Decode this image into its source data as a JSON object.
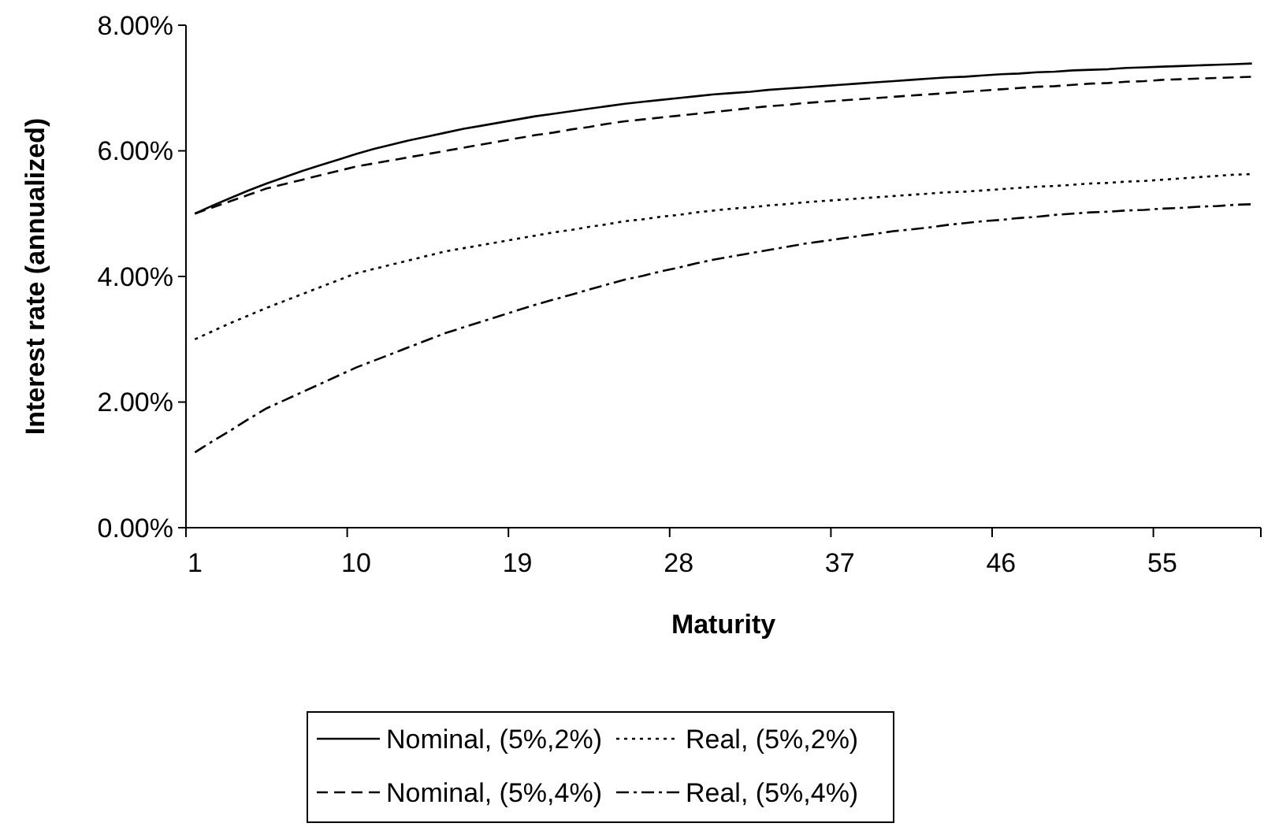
{
  "chart_data": {
    "type": "line",
    "xlabel": "Maturity",
    "ylabel": "Interest rate (annualized)",
    "categories": [
      "1",
      null,
      null,
      null,
      null,
      null,
      null,
      null,
      null,
      "10",
      null,
      null,
      null,
      null,
      null,
      null,
      null,
      null,
      "19",
      null,
      null,
      null,
      null,
      null,
      null,
      null,
      null,
      "28",
      null,
      null,
      null,
      null,
      null,
      null,
      null,
      null,
      "37",
      null,
      null,
      null,
      null,
      null,
      null,
      null,
      null,
      "46",
      null,
      null,
      null,
      null,
      null,
      null,
      null,
      null,
      "55",
      null,
      null,
      null,
      null,
      null
    ],
    "ylim": [
      0,
      8
    ],
    "yticks": [
      {
        "value": 0,
        "label": "0.00%"
      },
      {
        "value": 2,
        "label": "2.00%"
      },
      {
        "value": 4,
        "label": "4.00%"
      },
      {
        "value": 6,
        "label": "6.00%"
      },
      {
        "value": 8,
        "label": "8.00%"
      }
    ],
    "grid": false,
    "legend": "bottom",
    "marker": "none",
    "series": [
      {
        "name": "Nominal, (5%,2%)",
        "color": "#000000",
        "line_style": "solid",
        "values": [
          5.0,
          5.13,
          5.25,
          5.37,
          5.48,
          5.58,
          5.68,
          5.77,
          5.86,
          5.95,
          6.03,
          6.1,
          6.17,
          6.23,
          6.29,
          6.35,
          6.4,
          6.45,
          6.5,
          6.55,
          6.59,
          6.63,
          6.67,
          6.71,
          6.75,
          6.78,
          6.81,
          6.84,
          6.87,
          6.9,
          6.92,
          6.94,
          6.97,
          6.99,
          7.01,
          7.03,
          7.05,
          7.07,
          7.09,
          7.11,
          7.13,
          7.15,
          7.17,
          7.18,
          7.2,
          7.22,
          7.23,
          7.25,
          7.26,
          7.28,
          7.29,
          7.3,
          7.32,
          7.33,
          7.34,
          7.35,
          7.36,
          7.37,
          7.38,
          7.39
        ]
      },
      {
        "name": "Real, (5%,2%)",
        "color": "#000000",
        "line_style": "dotted",
        "values": [
          3.0,
          3.13,
          3.26,
          3.38,
          3.5,
          3.61,
          3.72,
          3.83,
          3.94,
          4.05,
          4.12,
          4.19,
          4.26,
          4.33,
          4.4,
          4.45,
          4.5,
          4.55,
          4.6,
          4.65,
          4.7,
          4.74,
          4.79,
          4.83,
          4.88,
          4.91,
          4.95,
          4.98,
          5.02,
          5.05,
          5.08,
          5.1,
          5.13,
          5.15,
          5.18,
          5.2,
          5.22,
          5.24,
          5.26,
          5.28,
          5.3,
          5.32,
          5.34,
          5.35,
          5.37,
          5.39,
          5.41,
          5.43,
          5.44,
          5.46,
          5.48,
          5.49,
          5.51,
          5.52,
          5.54,
          5.56,
          5.58,
          5.6,
          5.62,
          5.63
        ]
      },
      {
        "name": "Nominal, (5%,4%)",
        "color": "#000000",
        "line_style": "dashed",
        "values": [
          5.0,
          5.1,
          5.2,
          5.3,
          5.4,
          5.47,
          5.54,
          5.61,
          5.68,
          5.75,
          5.8,
          5.85,
          5.9,
          5.95,
          6.0,
          6.05,
          6.1,
          6.15,
          6.2,
          6.25,
          6.29,
          6.34,
          6.38,
          6.43,
          6.47,
          6.5,
          6.53,
          6.56,
          6.59,
          6.62,
          6.65,
          6.68,
          6.71,
          6.73,
          6.76,
          6.78,
          6.8,
          6.82,
          6.84,
          6.86,
          6.88,
          6.9,
          6.92,
          6.94,
          6.96,
          6.98,
          7.0,
          7.02,
          7.03,
          7.05,
          7.07,
          7.08,
          7.1,
          7.11,
          7.13,
          7.14,
          7.15,
          7.16,
          7.17,
          7.18
        ]
      },
      {
        "name": "Real, (5%,4%)",
        "color": "#000000",
        "line_style": "dashdot",
        "values": [
          1.2,
          1.38,
          1.55,
          1.73,
          1.9,
          2.03,
          2.16,
          2.29,
          2.42,
          2.55,
          2.66,
          2.77,
          2.88,
          2.99,
          3.1,
          3.19,
          3.28,
          3.37,
          3.46,
          3.55,
          3.63,
          3.71,
          3.79,
          3.87,
          3.95,
          4.01,
          4.08,
          4.14,
          4.21,
          4.27,
          4.32,
          4.37,
          4.42,
          4.47,
          4.52,
          4.56,
          4.6,
          4.64,
          4.68,
          4.72,
          4.75,
          4.78,
          4.82,
          4.85,
          4.88,
          4.9,
          4.93,
          4.95,
          4.98,
          5.0,
          5.02,
          5.03,
          5.05,
          5.06,
          5.08,
          5.09,
          5.11,
          5.12,
          5.14,
          5.15
        ]
      }
    ]
  }
}
